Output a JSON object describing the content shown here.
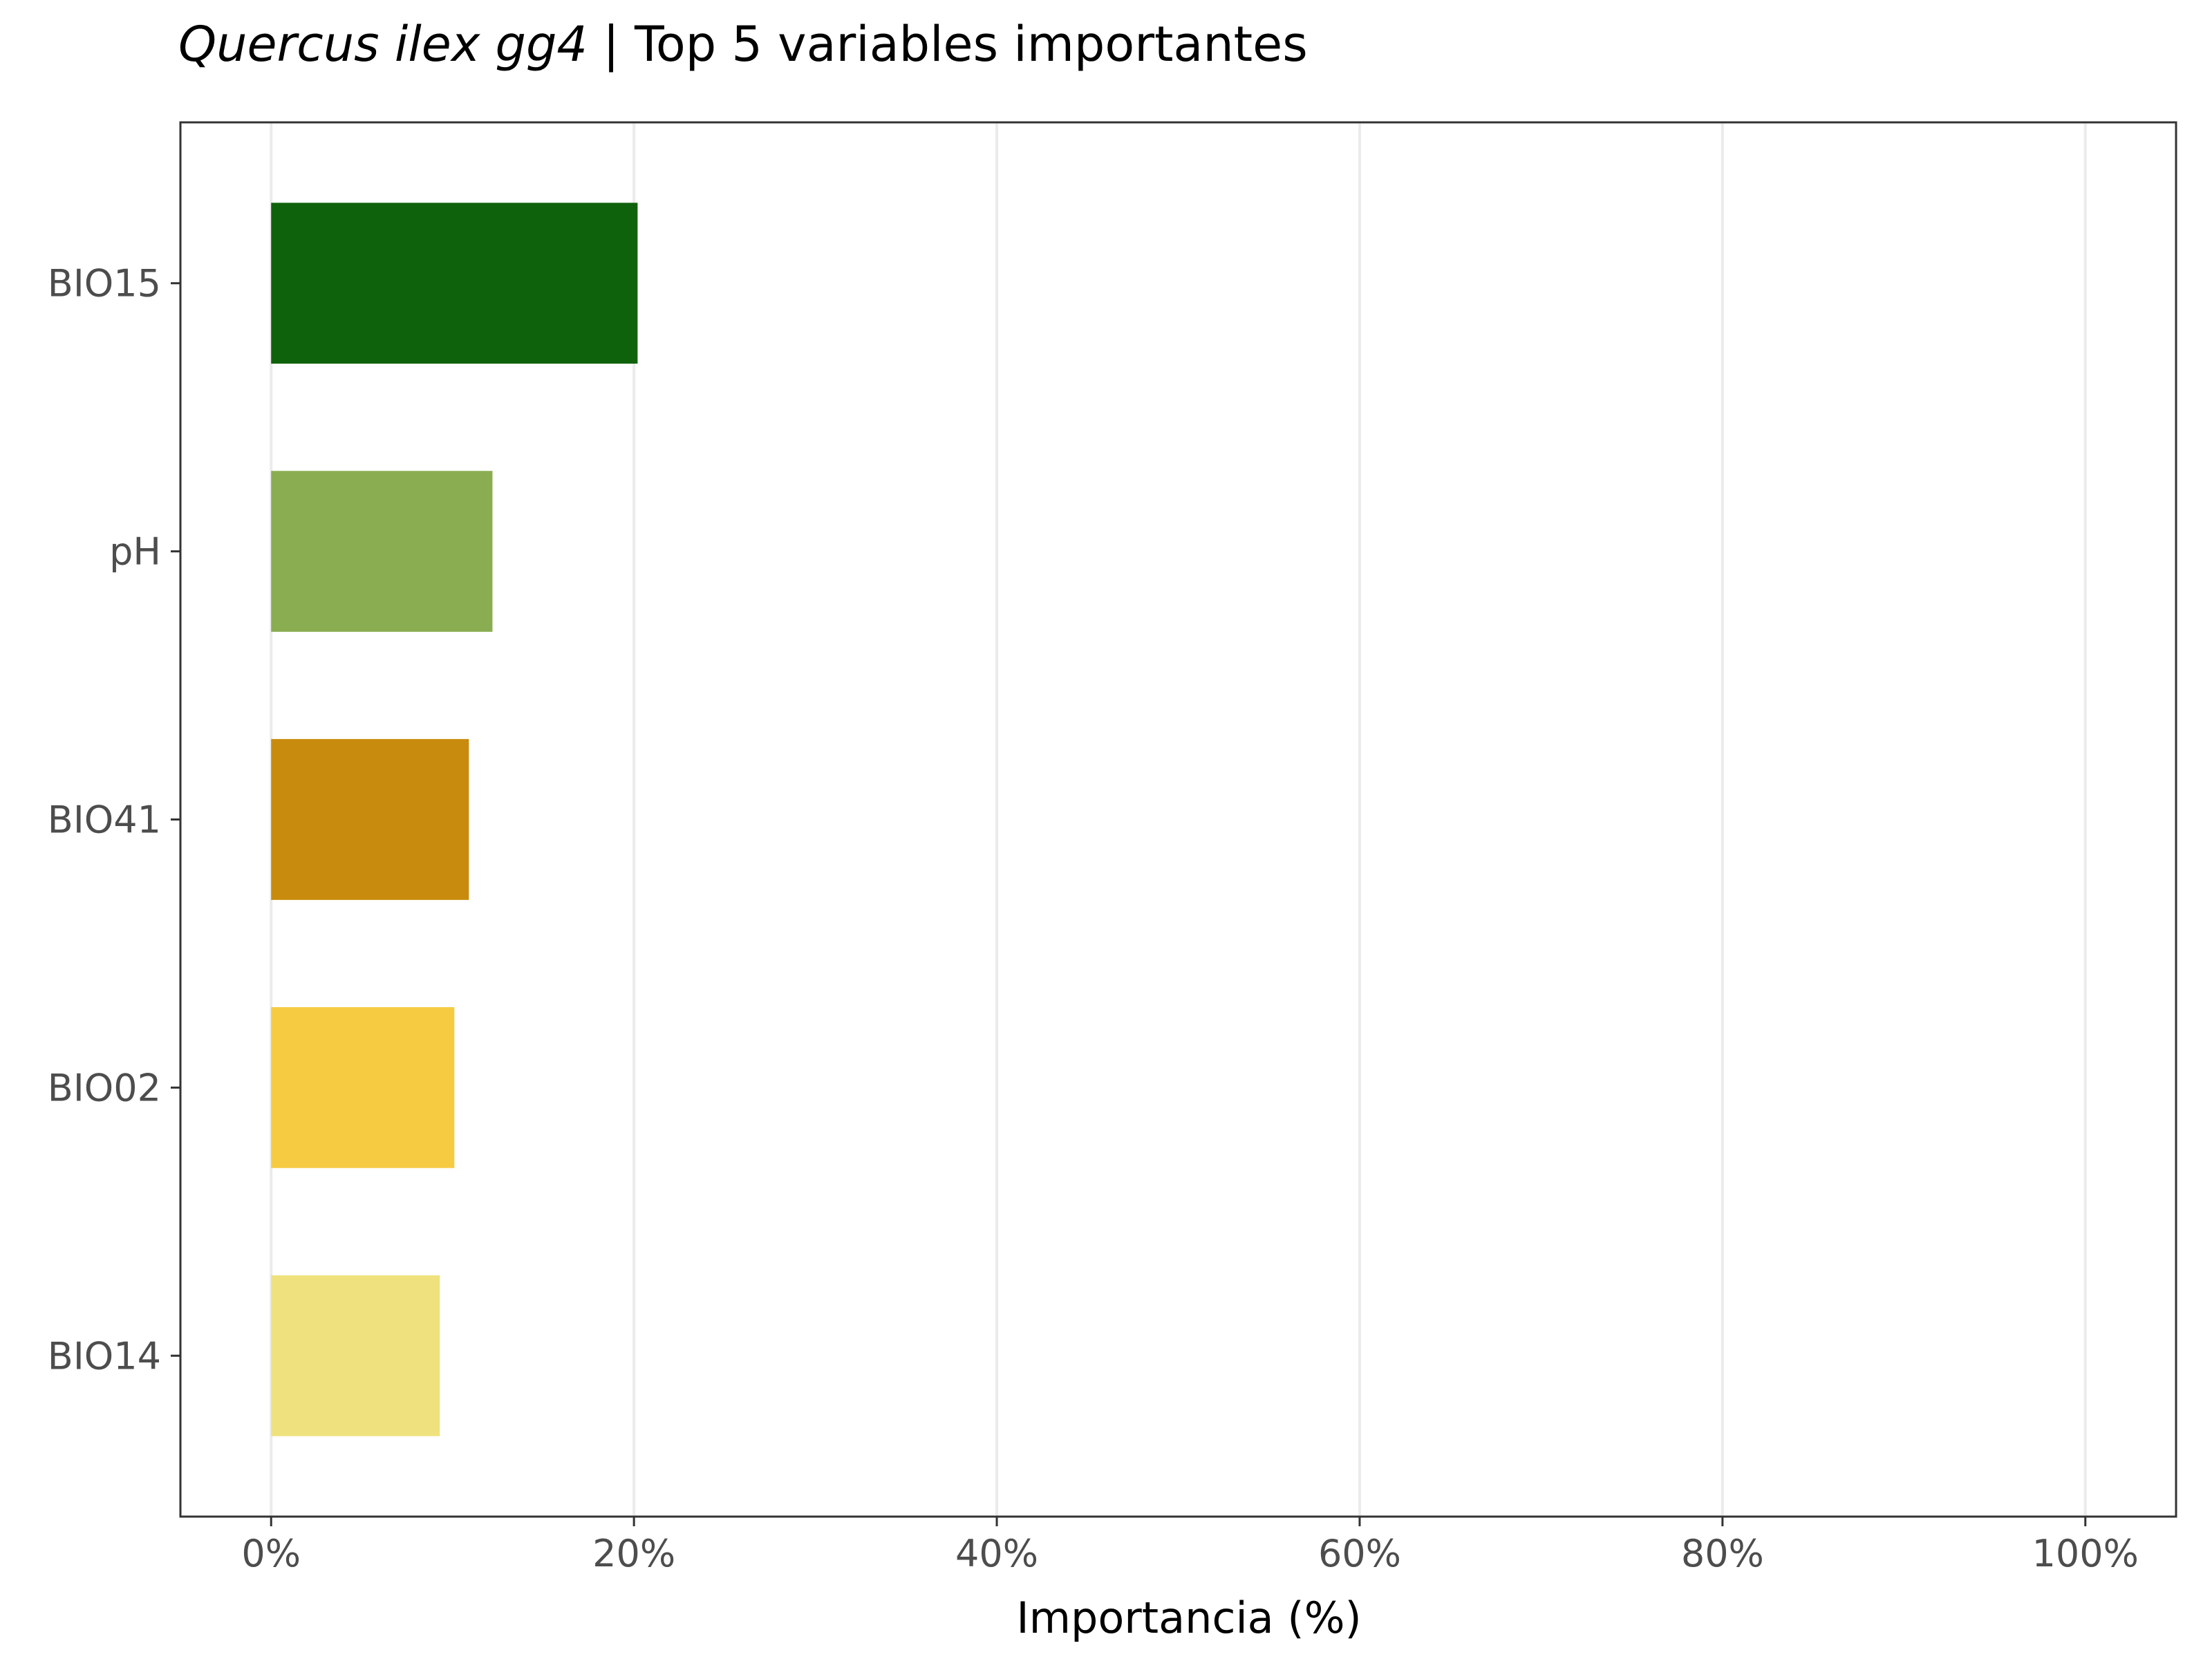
{
  "chart_data": {
    "type": "bar",
    "orientation": "horizontal",
    "title_italic": "Quercus ilex gg4",
    "title_rest": " | Top 5 variables importantes",
    "xlabel": "Importancia (%)",
    "ylabel": "",
    "xlim": [
      -5,
      105
    ],
    "x_ticks": [
      0,
      20,
      40,
      60,
      80,
      100
    ],
    "x_tick_labels": [
      "0%",
      "20%",
      "40%",
      "60%",
      "80%",
      "100%"
    ],
    "categories": [
      "BIO15",
      "pH",
      "BIO41",
      "BIO02",
      "BIO14"
    ],
    "values": [
      20.2,
      12.2,
      10.9,
      10.1,
      9.3
    ],
    "colors": [
      "#0f620c",
      "#8aad51",
      "#c98b0d",
      "#f6cb42",
      "#efe27e"
    ],
    "grid": "vertical-major",
    "legend": "none"
  }
}
